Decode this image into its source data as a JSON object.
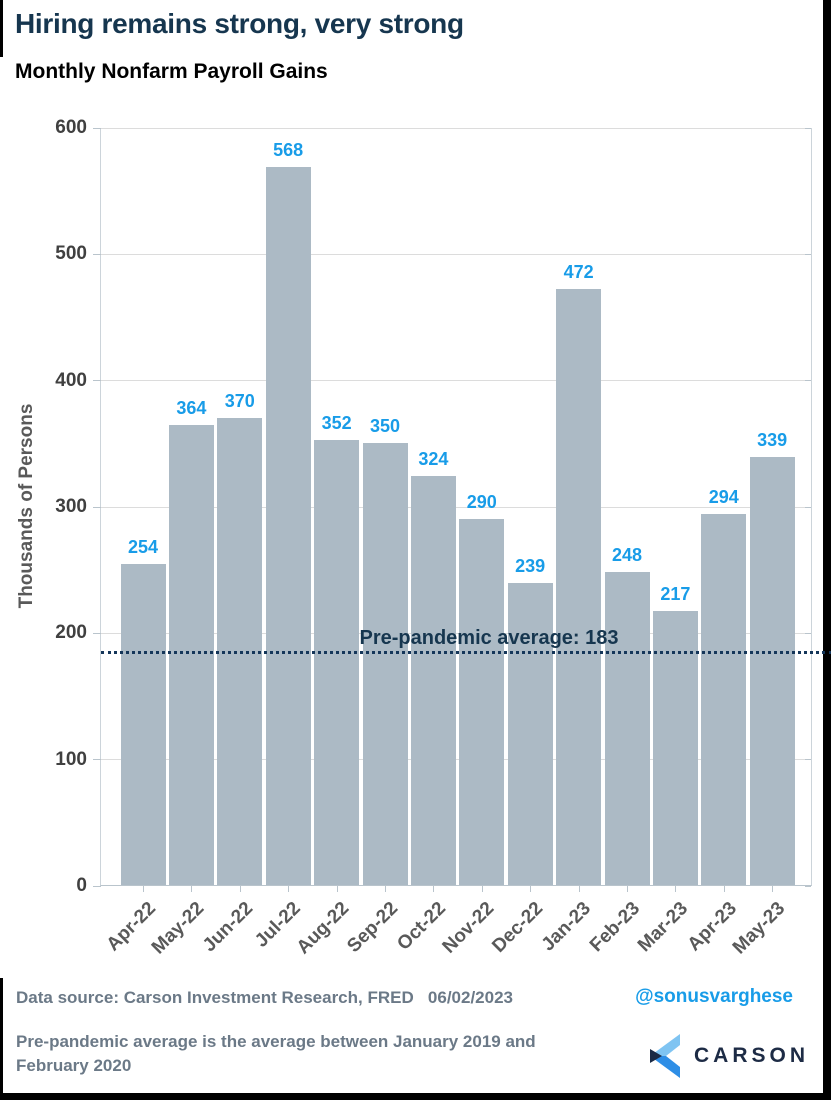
{
  "chart_data": {
    "type": "bar",
    "title": "Hiring remains strong, very strong",
    "subtitle": "Monthly Nonfarm Payroll Gains",
    "categories": [
      "Apr-22",
      "May-22",
      "Jun-22",
      "Jul-22",
      "Aug-22",
      "Sep-22",
      "Oct-22",
      "Nov-22",
      "Dec-22",
      "Jan-23",
      "Feb-23",
      "Mar-23",
      "Apr-23",
      "May-23"
    ],
    "values": [
      254,
      364,
      370,
      568,
      352,
      350,
      324,
      290,
      239,
      472,
      248,
      217,
      294,
      339
    ],
    "xlabel": "",
    "ylabel": "Thousands of Persons",
    "ylim": [
      0,
      600
    ],
    "yticks": [
      0,
      100,
      200,
      300,
      400,
      500,
      600
    ],
    "grid": "horizontal",
    "legend": "none",
    "bar_color": "#acbac5",
    "value_label_color": "#189ce8",
    "reference_line": {
      "value": 183,
      "label": "Pre-pandemic average: 183",
      "style": "dotted",
      "color": "#14365a"
    }
  },
  "footer": {
    "source": "Data source: Carson Investment Research, FRED   06/02/2023",
    "handle": "@sonusvarghese",
    "note": "Pre-pandemic average is the average between January 2019 and February 2020",
    "brand": "CARSON"
  },
  "colors": {
    "title_navy": "#16364f",
    "bar_fill": "#acbac5",
    "data_label_blue": "#189ce8",
    "axis_text": "#404040",
    "axis_title_gray": "#595959",
    "footer_gray": "#6b7987",
    "gridline": "#dcdcdc",
    "logo_light_blue": "#7fc4f2",
    "logo_mid_blue": "#2e8ee6",
    "logo_navy": "#1b2a45"
  }
}
